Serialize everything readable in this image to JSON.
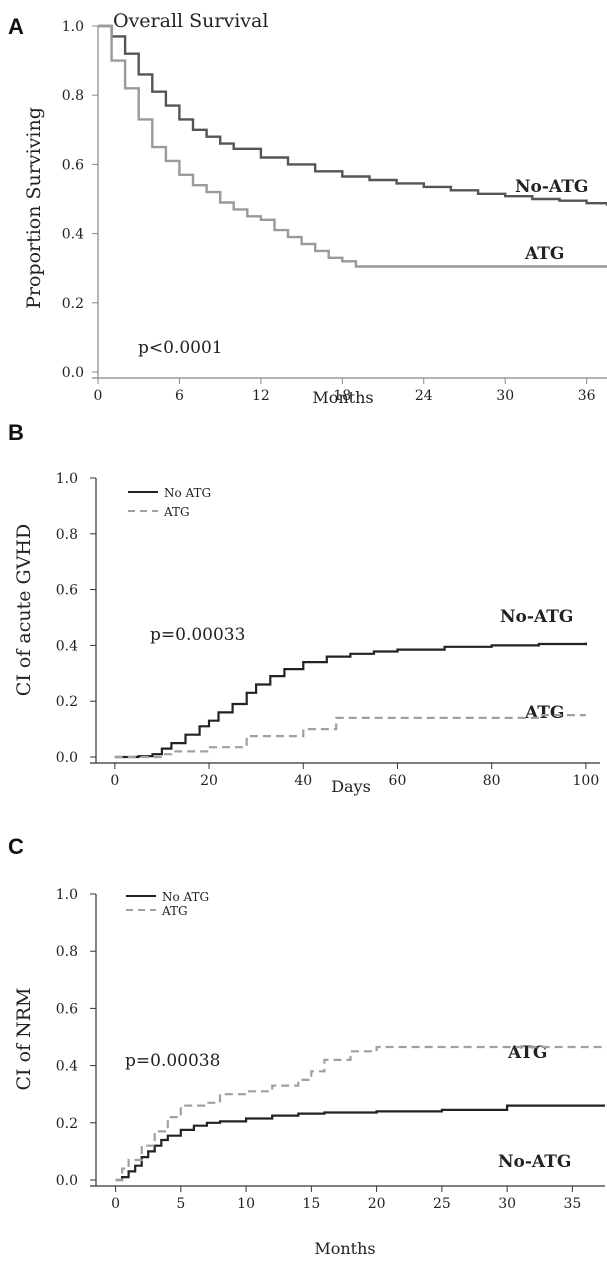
{
  "chart_data": [
    {
      "panel": "A",
      "type": "line",
      "title": "Overall Survival",
      "xlabel": "Months",
      "ylabel": "Proportion Surviving",
      "xlim": [
        0,
        37.5
      ],
      "ylim": [
        0,
        1
      ],
      "xticks": [
        0,
        6,
        12,
        18,
        24,
        30,
        36
      ],
      "yticks": [
        "0.0",
        "0.2",
        "0.4",
        "0.6",
        "0.8",
        "1.0"
      ],
      "annotation": "p<0.0001",
      "legend": null,
      "grid": false,
      "series": [
        {
          "name": "No-ATG",
          "label": "No-ATG",
          "color": "#555555",
          "style": "solid",
          "x": [
            0,
            1,
            2,
            3,
            4,
            5,
            6,
            7,
            8,
            9,
            10,
            12,
            14,
            16,
            18,
            20,
            22,
            24,
            26,
            28,
            30,
            32,
            34,
            36,
            37.5
          ],
          "y": [
            1.0,
            0.97,
            0.92,
            0.86,
            0.81,
            0.77,
            0.73,
            0.7,
            0.68,
            0.66,
            0.645,
            0.62,
            0.6,
            0.58,
            0.565,
            0.555,
            0.545,
            0.535,
            0.525,
            0.515,
            0.508,
            0.5,
            0.495,
            0.488,
            0.48
          ]
        },
        {
          "name": "ATG",
          "label": "ATG",
          "color": "#9a9a9a",
          "style": "solid",
          "x": [
            0,
            1,
            2,
            3,
            4,
            5,
            6,
            7,
            8,
            9,
            10,
            11,
            12,
            13,
            14,
            15,
            16,
            17,
            18,
            19,
            20,
            37.5
          ],
          "y": [
            1.0,
            0.9,
            0.82,
            0.73,
            0.65,
            0.61,
            0.57,
            0.54,
            0.52,
            0.49,
            0.47,
            0.45,
            0.44,
            0.41,
            0.39,
            0.37,
            0.35,
            0.33,
            0.32,
            0.305,
            0.305,
            0.305
          ]
        }
      ]
    },
    {
      "panel": "B",
      "type": "line",
      "title": "",
      "xlabel": "Days",
      "ylabel": "CI of acute GVHD",
      "xlim": [
        -4,
        103
      ],
      "ylim": [
        0,
        1
      ],
      "xticks": [
        0,
        20,
        40,
        60,
        80,
        100
      ],
      "yticks": [
        "0.0",
        "0.2",
        "0.4",
        "0.6",
        "0.8",
        "1.0"
      ],
      "annotation": "p=0.00033",
      "legend": {
        "entries": [
          "No ATG",
          "ATG"
        ],
        "position": "top-left"
      },
      "grid": false,
      "series": [
        {
          "name": "No ATG",
          "label": "No-ATG",
          "color": "#222222",
          "style": "solid",
          "x": [
            0,
            5,
            8,
            10,
            12,
            15,
            18,
            20,
            22,
            25,
            28,
            30,
            33,
            36,
            40,
            45,
            50,
            55,
            60,
            70,
            80,
            90,
            100
          ],
          "y": [
            0,
            0.003,
            0.01,
            0.03,
            0.05,
            0.08,
            0.11,
            0.13,
            0.16,
            0.19,
            0.23,
            0.26,
            0.29,
            0.315,
            0.34,
            0.36,
            0.37,
            0.378,
            0.385,
            0.395,
            0.4,
            0.405,
            0.41
          ]
        },
        {
          "name": "ATG",
          "label": "ATG",
          "color": "#a0a0a0",
          "style": "dashed",
          "x": [
            0,
            5,
            10,
            12,
            20,
            27,
            28,
            38,
            40,
            46,
            47,
            80,
            89,
            90,
            100
          ],
          "y": [
            0,
            0,
            0.01,
            0.02,
            0.035,
            0.035,
            0.075,
            0.075,
            0.1,
            0.1,
            0.14,
            0.14,
            0.14,
            0.15,
            0.15
          ]
        }
      ]
    },
    {
      "panel": "C",
      "type": "line",
      "title": "",
      "xlabel": "Months",
      "ylabel": "CI of NRM",
      "xlim": [
        -1.5,
        37.5
      ],
      "ylim": [
        0,
        1
      ],
      "xticks": [
        0,
        5,
        10,
        15,
        20,
        25,
        30,
        35
      ],
      "yticks": [
        "0.0",
        "0.2",
        "0.4",
        "0.6",
        "0.8",
        "1.0"
      ],
      "annotation": "p=0.00038",
      "legend": {
        "entries": [
          "No ATG",
          "ATG"
        ],
        "position": "top-left"
      },
      "grid": false,
      "series": [
        {
          "name": "No ATG",
          "label": "No-ATG",
          "color": "#222222",
          "style": "solid",
          "x": [
            0,
            0.5,
            1,
            1.5,
            2,
            2.5,
            3,
            3.5,
            4,
            5,
            6,
            7,
            8,
            10,
            12,
            14,
            16,
            20,
            25,
            30,
            37.5
          ],
          "y": [
            0,
            0.01,
            0.03,
            0.05,
            0.08,
            0.1,
            0.12,
            0.14,
            0.155,
            0.175,
            0.19,
            0.2,
            0.205,
            0.215,
            0.225,
            0.232,
            0.236,
            0.24,
            0.245,
            0.26,
            0.26
          ]
        },
        {
          "name": "ATG",
          "label": "ATG",
          "color": "#a0a0a0",
          "style": "dashed",
          "x": [
            0,
            0.5,
            1,
            2,
            3,
            4,
            5,
            7,
            8,
            10,
            12,
            14,
            15,
            16,
            18,
            20,
            37.5
          ],
          "y": [
            0,
            0.04,
            0.07,
            0.12,
            0.17,
            0.22,
            0.26,
            0.27,
            0.3,
            0.31,
            0.33,
            0.35,
            0.38,
            0.42,
            0.45,
            0.465,
            0.465
          ]
        }
      ]
    }
  ],
  "panel_labels": [
    "A",
    "B",
    "C"
  ]
}
